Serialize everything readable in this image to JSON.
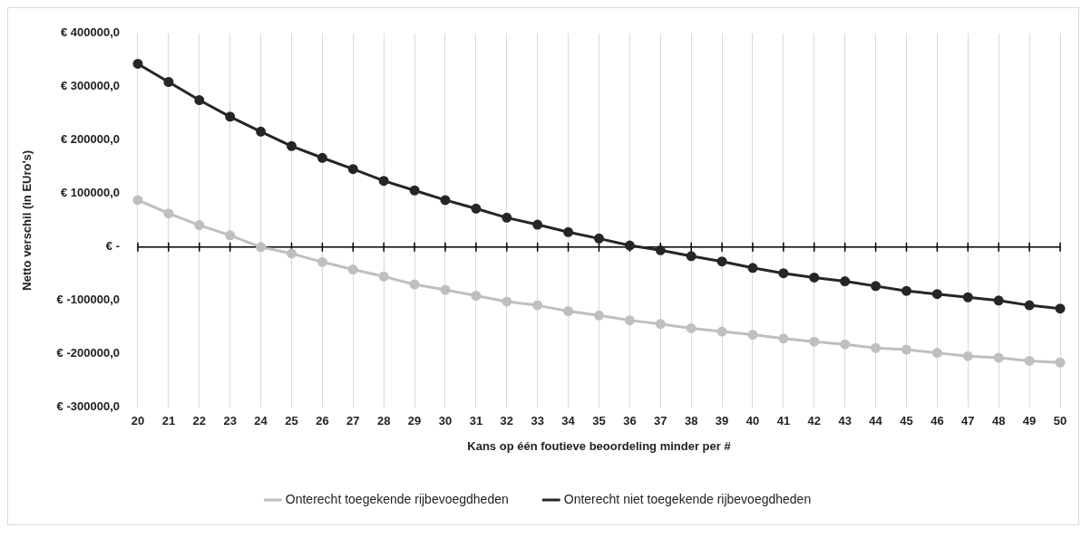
{
  "chart_data": {
    "type": "line",
    "xlabel": "Kans op één foutieve beoordeling minder per #",
    "ylabel": "Netto verschil (in EUro's)",
    "categories": [
      "20",
      "21",
      "22",
      "23",
      "24",
      "25",
      "26",
      "27",
      "28",
      "29",
      "30",
      "31",
      "32",
      "33",
      "34",
      "35",
      "36",
      "37",
      "38",
      "39",
      "40",
      "41",
      "42",
      "43",
      "44",
      "45",
      "46",
      "47",
      "48",
      "49",
      "50"
    ],
    "series": [
      {
        "name": "Onterecht toegekende rijbevoegdheden",
        "color": "#bfbfbf",
        "values": [
          88000,
          63000,
          41000,
          22000,
          0,
          -12000,
          -28000,
          -42000,
          -55000,
          -70000,
          -80000,
          -91000,
          -102000,
          -109000,
          -120000,
          -128000,
          -137000,
          -144000,
          -152000,
          -158000,
          -164000,
          -171000,
          -177000,
          -182000,
          -189000,
          -192000,
          -198000,
          -204000,
          -207000,
          -213000,
          -216000
        ]
      },
      {
        "name": "Onterecht niet toegekende rijbevoegdheden",
        "color": "#262626",
        "values": [
          343000,
          309000,
          275000,
          244000,
          216000,
          189000,
          167000,
          146000,
          124000,
          106000,
          88000,
          72000,
          55000,
          42000,
          28000,
          16000,
          3000,
          -6000,
          -17000,
          -27000,
          -39000,
          -49000,
          -57000,
          -64000,
          -73000,
          -82000,
          -88000,
          -94000,
          -100000,
          -109000,
          -115000
        ]
      }
    ],
    "ylim": [
      -300000,
      400000
    ],
    "yticks": [
      {
        "value": -300000,
        "label": "€ -300000,0"
      },
      {
        "value": -200000,
        "label": "€ -200000,0"
      },
      {
        "value": -100000,
        "label": "€ -100000,0"
      },
      {
        "value": 0,
        "label": "€ -"
      },
      {
        "value": 100000,
        "label": "€ 100000,0"
      },
      {
        "value": 200000,
        "label": "€ 200000,0"
      },
      {
        "value": 300000,
        "label": "€ 300000,0"
      },
      {
        "value": 400000,
        "label": "€ 400000,0"
      }
    ],
    "grid": "x",
    "legend": "bottom",
    "marker": "circle",
    "line_style": "solid"
  }
}
